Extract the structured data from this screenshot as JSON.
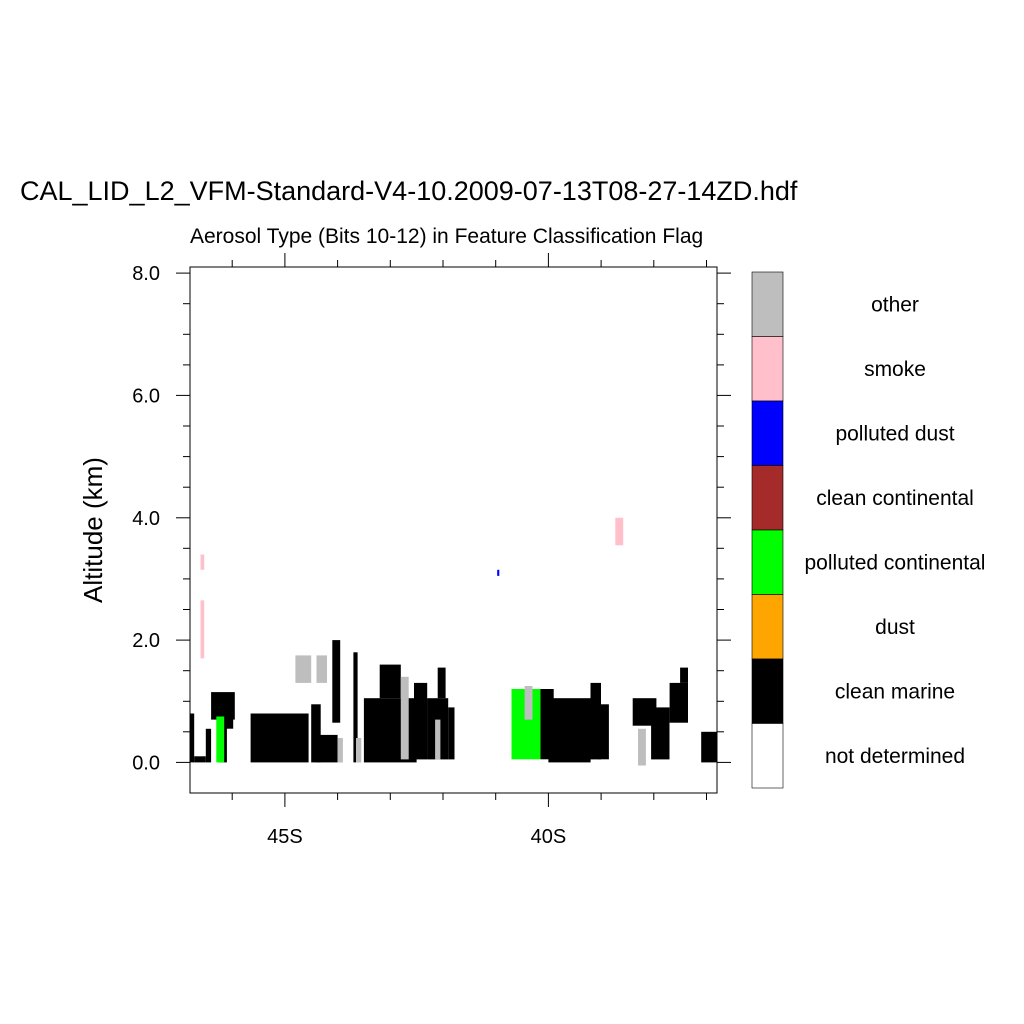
{
  "title": "CAL_LID_L2_VFM-Standard-V4-10.2009-07-13T08-27-14ZD.hdf",
  "subtitle": "Aerosol Type (Bits 10-12) in Feature Classification Flag",
  "chart_data": {
    "type": "heatmap",
    "ylabel": "Altitude (km)",
    "ylim": [
      -0.5,
      8.1
    ],
    "yticks": [
      {
        "value": 0,
        "label": "0.0"
      },
      {
        "value": 2,
        "label": "2.0"
      },
      {
        "value": 4,
        "label": "4.0"
      },
      {
        "value": 6,
        "label": "6.0"
      },
      {
        "value": 8,
        "label": "8.0"
      }
    ],
    "xlim": [
      -46.8,
      -36.8
    ],
    "xticks": [
      {
        "value": -45,
        "label": "45S"
      },
      {
        "value": -40,
        "label": "40S"
      }
    ],
    "legend": {
      "placement": "right",
      "items": [
        {
          "label": "other",
          "color": "#bebebe"
        },
        {
          "label": "smoke",
          "color": "#ffc0cb"
        },
        {
          "label": "polluted dust",
          "color": "#0000ff"
        },
        {
          "label": "clean continental",
          "color": "#a52a2a"
        },
        {
          "label": "polluted continental",
          "color": "#00ff00"
        },
        {
          "label": "dust",
          "color": "#ffa500"
        },
        {
          "label": "clean marine",
          "color": "#000000"
        },
        {
          "label": "not determined",
          "color": "#ffffff"
        }
      ]
    },
    "features": [
      {
        "type": "smoke",
        "lat": [
          -46.6,
          -46.53
        ],
        "alt": [
          3.15,
          3.4
        ]
      },
      {
        "type": "smoke",
        "lat": [
          -46.6,
          -46.53
        ],
        "alt": [
          1.7,
          2.65
        ]
      },
      {
        "type": "smoke",
        "lat": [
          -38.73,
          -38.58
        ],
        "alt": [
          3.55,
          4.0
        ]
      },
      {
        "type": "polluted dust",
        "lat": [
          -40.97,
          -40.93
        ],
        "alt": [
          3.05,
          3.15
        ]
      },
      {
        "type": "clean marine",
        "lat": [
          -46.8,
          -46.72
        ],
        "alt": [
          0.0,
          0.8
        ]
      },
      {
        "type": "clean marine",
        "lat": [
          -46.72,
          -46.5
        ],
        "alt": [
          0.0,
          0.1
        ]
      },
      {
        "type": "clean marine",
        "lat": [
          -46.5,
          -46.4
        ],
        "alt": [
          0.0,
          0.55
        ]
      },
      {
        "type": "clean marine",
        "lat": [
          -46.4,
          -45.95
        ],
        "alt": [
          0.7,
          1.15
        ]
      },
      {
        "type": "clean marine",
        "lat": [
          -46.25,
          -46.1
        ],
        "alt": [
          0.0,
          0.75
        ]
      },
      {
        "type": "clean marine",
        "lat": [
          -46.12,
          -45.98
        ],
        "alt": [
          0.55,
          0.75
        ]
      },
      {
        "type": "clean marine",
        "lat": [
          -45.65,
          -44.55
        ],
        "alt": [
          0.0,
          0.8
        ]
      },
      {
        "type": "clean marine",
        "lat": [
          -44.5,
          -44.32
        ],
        "alt": [
          0.0,
          0.95
        ]
      },
      {
        "type": "clean marine",
        "lat": [
          -44.4,
          -44.0
        ],
        "alt": [
          0.0,
          0.45
        ]
      },
      {
        "type": "clean marine",
        "lat": [
          -44.1,
          -43.95
        ],
        "alt": [
          0.65,
          2.0
        ]
      },
      {
        "type": "clean marine",
        "lat": [
          -43.7,
          -43.62
        ],
        "alt": [
          0.0,
          1.8
        ]
      },
      {
        "type": "clean marine",
        "lat": [
          -43.5,
          -42.5
        ],
        "alt": [
          0.0,
          1.05
        ]
      },
      {
        "type": "clean marine",
        "lat": [
          -43.2,
          -42.8
        ],
        "alt": [
          1.05,
          1.6
        ]
      },
      {
        "type": "clean marine",
        "lat": [
          -42.55,
          -42.3
        ],
        "alt": [
          0.05,
          1.3
        ]
      },
      {
        "type": "clean marine",
        "lat": [
          -42.3,
          -41.9
        ],
        "alt": [
          0.05,
          1.05
        ]
      },
      {
        "type": "clean marine",
        "lat": [
          -42.1,
          -41.95
        ],
        "alt": [
          1.05,
          1.55
        ]
      },
      {
        "type": "clean marine",
        "lat": [
          -41.9,
          -41.78
        ],
        "alt": [
          0.05,
          0.9
        ]
      },
      {
        "type": "polluted continental",
        "lat": [
          -46.3,
          -46.15
        ],
        "alt": [
          0.0,
          0.75
        ]
      },
      {
        "type": "polluted continental",
        "lat": [
          -40.7,
          -40.15
        ],
        "alt": [
          0.05,
          1.2
        ]
      },
      {
        "type": "polluted continental",
        "lat": [
          -39.85,
          -39.7
        ],
        "alt": [
          0.4,
          0.9
        ]
      },
      {
        "type": "clean marine",
        "lat": [
          -40.15,
          -39.9
        ],
        "alt": [
          0.05,
          1.2
        ]
      },
      {
        "type": "clean marine",
        "lat": [
          -40.0,
          -39.2
        ],
        "alt": [
          0.0,
          1.05
        ]
      },
      {
        "type": "clean marine",
        "lat": [
          -39.2,
          -39.0
        ],
        "alt": [
          0.05,
          1.3
        ]
      },
      {
        "type": "clean marine",
        "lat": [
          -39.05,
          -38.85
        ],
        "alt": [
          0.05,
          0.95
        ]
      },
      {
        "type": "clean marine",
        "lat": [
          -38.4,
          -37.95
        ],
        "alt": [
          0.6,
          1.05
        ]
      },
      {
        "type": "clean marine",
        "lat": [
          -38.05,
          -37.7
        ],
        "alt": [
          0.05,
          0.9
        ]
      },
      {
        "type": "clean marine",
        "lat": [
          -37.7,
          -37.35
        ],
        "alt": [
          0.65,
          1.3
        ]
      },
      {
        "type": "clean marine",
        "lat": [
          -37.5,
          -37.35
        ],
        "alt": [
          1.3,
          1.55
        ]
      },
      {
        "type": "clean marine",
        "lat": [
          -37.1,
          -36.8
        ],
        "alt": [
          0.0,
          0.5
        ]
      },
      {
        "type": "other",
        "lat": [
          -44.8,
          -44.5
        ],
        "alt": [
          1.3,
          1.75
        ]
      },
      {
        "type": "other",
        "lat": [
          -44.4,
          -44.2
        ],
        "alt": [
          1.3,
          1.75
        ]
      },
      {
        "type": "other",
        "lat": [
          -44.0,
          -43.9
        ],
        "alt": [
          0.0,
          0.4
        ]
      },
      {
        "type": "other",
        "lat": [
          -43.65,
          -43.55
        ],
        "alt": [
          0.0,
          0.4
        ]
      },
      {
        "type": "other",
        "lat": [
          -42.8,
          -42.65
        ],
        "alt": [
          0.05,
          1.4
        ]
      },
      {
        "type": "other",
        "lat": [
          -42.15,
          -42.05
        ],
        "alt": [
          0.05,
          0.7
        ]
      },
      {
        "type": "other",
        "lat": [
          -40.45,
          -40.3
        ],
        "alt": [
          0.7,
          1.25
        ]
      },
      {
        "type": "other",
        "lat": [
          -38.3,
          -38.15
        ],
        "alt": [
          -0.05,
          0.55
        ]
      }
    ]
  }
}
